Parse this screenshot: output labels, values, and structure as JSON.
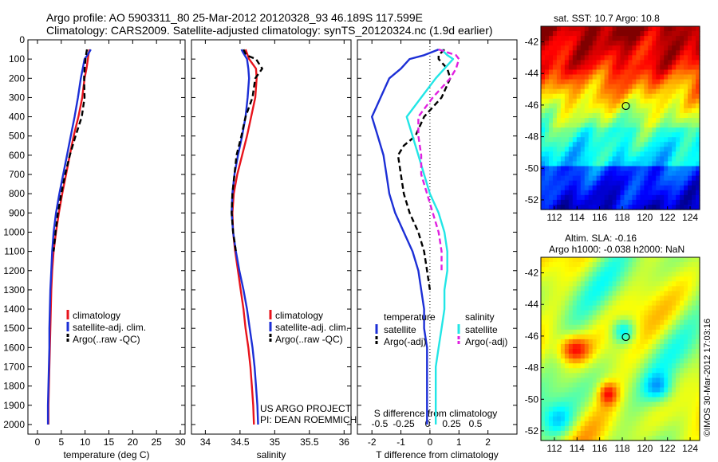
{
  "header": {
    "line1": "Argo profile: AO 5903311_80 25-Mar-2012 20120328_93 46.189S 117.599E",
    "line2": "Climatology: CARS2009. Satellite-adjusted climatology: synTS_20120324.nc (1.9d earlier)"
  },
  "colors": {
    "clim": "#e8141c",
    "sat": "#1c2fd6",
    "argo": "#000000",
    "sal_sat": "#22e6e6",
    "sal_argo": "#e020e0"
  },
  "chart_data": [
    {
      "id": "temperature",
      "type": "line",
      "xlabel": "temperature (deg C)",
      "xlim": [
        -2,
        31
      ],
      "ylim": [
        0,
        2050
      ],
      "xticks": [
        "0",
        "5",
        "10",
        "15",
        "20",
        "25",
        "30"
      ],
      "xtick_values": [
        0,
        5,
        10,
        15,
        20,
        25,
        30
      ],
      "yticks": [
        "0",
        "100",
        "200",
        "300",
        "400",
        "500",
        "600",
        "700",
        "800",
        "900",
        "1000",
        "1100",
        "1200",
        "1300",
        "1400",
        "1500",
        "1600",
        "1700",
        "1800",
        "1900",
        "2000"
      ],
      "ytick_values": [
        0,
        100,
        200,
        300,
        400,
        500,
        600,
        700,
        800,
        900,
        1000,
        1100,
        1200,
        1300,
        1400,
        1500,
        1600,
        1700,
        1800,
        1900,
        2000
      ],
      "legend": [
        "climatology",
        "satellite-adj. clim.",
        "Argo(..raw -QC)"
      ],
      "series": [
        {
          "name": "climatology",
          "color": "#e8141c",
          "dash": "",
          "x": [
            10.9,
            10.7,
            10.6,
            10.3,
            9.9,
            9.4,
            8.6,
            7.6,
            6.8,
            6.0,
            5.2,
            4.5,
            3.9,
            3.4,
            3.1,
            2.9,
            2.8,
            2.7,
            2.6,
            2.5,
            2.4,
            2.3,
            2.3
          ],
          "y": [
            50,
            80,
            100,
            150,
            200,
            300,
            400,
            500,
            600,
            700,
            800,
            900,
            1000,
            1100,
            1200,
            1300,
            1400,
            1500,
            1600,
            1700,
            1800,
            1900,
            2000
          ]
        },
        {
          "name": "satellite-adj. clim.",
          "color": "#1c2fd6",
          "dash": "",
          "x": [
            11.2,
            10.5,
            9.9,
            9.5,
            9.1,
            8.5,
            7.8,
            7.0,
            6.2,
            5.4,
            4.6,
            3.9,
            3.4,
            3.1,
            2.9,
            2.7,
            2.6,
            2.5,
            2.5,
            2.4,
            2.3,
            2.2,
            2.2
          ],
          "y": [
            50,
            80,
            100,
            150,
            200,
            300,
            400,
            500,
            600,
            700,
            800,
            900,
            1000,
            1100,
            1200,
            1300,
            1400,
            1500,
            1600,
            1700,
            1800,
            1900,
            2000
          ]
        },
        {
          "name": "Argo(..raw -QC)",
          "color": "#000000",
          "dash": "7,4",
          "x": [
            10.4,
            10.2,
            10.1,
            9.9,
            9.8,
            9.9,
            9.3,
            8.0,
            6.8,
            5.8,
            5.0,
            4.3,
            3.8,
            3.4
          ],
          "y": [
            50,
            80,
            100,
            150,
            200,
            300,
            400,
            500,
            600,
            700,
            800,
            900,
            1000,
            1100
          ]
        }
      ]
    },
    {
      "id": "salinity",
      "type": "line",
      "xlabel": "salinity",
      "xlim": [
        33.8,
        36.1
      ],
      "ylim": [
        0,
        2050
      ],
      "xticks": [
        "34",
        "34.5",
        "35",
        "35.5",
        "36"
      ],
      "xtick_values": [
        34,
        34.5,
        35,
        35.5,
        36
      ],
      "legend": [
        "climatology",
        "satellite-adj. clim.",
        "Argo(..raw -QC)"
      ],
      "annotations": [
        "US ARGO PROJECT",
        "PI: DEAN ROEMMICH"
      ],
      "series": [
        {
          "name": "climatology",
          "color": "#e8141c",
          "dash": "",
          "x": [
            34.58,
            34.6,
            34.63,
            34.73,
            34.74,
            34.72,
            34.66,
            34.6,
            34.53,
            34.46,
            34.41,
            34.39,
            34.4,
            34.43,
            34.47,
            34.51,
            34.55,
            34.58,
            34.62,
            34.65,
            34.67,
            34.69,
            34.7
          ],
          "y": [
            50,
            70,
            100,
            150,
            200,
            300,
            400,
            500,
            600,
            700,
            800,
            900,
            1000,
            1100,
            1200,
            1300,
            1400,
            1500,
            1600,
            1700,
            1800,
            1900,
            2000
          ]
        },
        {
          "name": "satellite-adj. clim.",
          "color": "#1c2fd6",
          "dash": "",
          "x": [
            34.52,
            34.55,
            34.6,
            34.62,
            34.63,
            34.61,
            34.58,
            34.53,
            34.47,
            34.42,
            34.39,
            34.38,
            34.4,
            34.44,
            34.49,
            34.55,
            34.6,
            34.64,
            34.68,
            34.71,
            34.73,
            34.75,
            34.76
          ],
          "y": [
            50,
            70,
            100,
            150,
            200,
            300,
            400,
            500,
            600,
            700,
            800,
            900,
            1000,
            1100,
            1200,
            1300,
            1400,
            1500,
            1600,
            1700,
            1800,
            1900,
            2000
          ]
        },
        {
          "name": "Argo(..raw -QC)",
          "color": "#000000",
          "dash": "7,4",
          "x": [
            34.55,
            34.59,
            34.73,
            34.82,
            34.72,
            34.68,
            34.58,
            34.52,
            34.45,
            34.42,
            34.39,
            34.38,
            34.4,
            34.44
          ],
          "y": [
            50,
            80,
            100,
            150,
            200,
            300,
            400,
            500,
            600,
            700,
            800,
            900,
            1000,
            1100
          ]
        }
      ]
    },
    {
      "id": "difference",
      "type": "line",
      "xlabel": "T difference from climatology",
      "xlabel2": "S difference from climatology",
      "xlim": [
        -2.5,
        3
      ],
      "ylim": [
        0,
        2050
      ],
      "xticks": [
        "-2",
        "-1",
        "0",
        "1",
        "2"
      ],
      "xtick_values": [
        -2,
        -1,
        0,
        1,
        2
      ],
      "xticks2": [
        "-0.5",
        "-0.25",
        "0",
        "0.25",
        "0.5"
      ],
      "xtick2_values": [
        -0.5,
        -0.25,
        0,
        0.25,
        0.5
      ],
      "legend_t": {
        "title": "temperature",
        "items": [
          "satellite",
          "Argo(-adj)"
        ]
      },
      "legend_s": {
        "title": "salinity",
        "items": [
          "satellite",
          "Argo(-adj)"
        ]
      },
      "series": [
        {
          "name": "satellite",
          "color": "#1c2fd6",
          "dash": "",
          "x": [
            0.3,
            -0.2,
            -0.7,
            -1.0,
            -1.4,
            -1.7,
            -2.0,
            -1.8,
            -1.6,
            -1.5,
            -1.4,
            -1.2,
            -0.9,
            -0.6,
            -0.4,
            -0.3,
            -0.2,
            -0.2,
            -0.1,
            -0.1,
            -0.1,
            -0.1,
            -0.1
          ],
          "y": [
            50,
            80,
            100,
            150,
            200,
            300,
            400,
            500,
            600,
            700,
            800,
            900,
            1000,
            1100,
            1200,
            1300,
            1400,
            1500,
            1600,
            1700,
            1800,
            1900,
            2000
          ]
        },
        {
          "name": "Argo(-adj)",
          "color": "#000000",
          "dash": "7,4",
          "x": [
            0.5,
            0.3,
            0.3,
            0.6,
            0.7,
            0.4,
            -0.2,
            -0.5,
            -0.9,
            -1.1,
            -1.0,
            -0.9,
            -0.7,
            -0.4,
            -0.2,
            -0.1,
            0.0
          ],
          "y": [
            50,
            80,
            100,
            150,
            200,
            300,
            400,
            500,
            550,
            600,
            700,
            800,
            900,
            1000,
            1100,
            1200,
            1300
          ]
        },
        {
          "name": "satellite",
          "color": "#22e6e6",
          "dash": "",
          "x": [
            0.4,
            0.6,
            0.8,
            0.5,
            0.2,
            -0.3,
            -0.8,
            -0.6,
            -0.4,
            -0.2,
            0.0,
            0.3,
            0.5,
            0.6,
            0.6,
            0.5,
            0.5,
            0.4,
            0.3,
            0.2,
            0.2,
            0.2,
            0.2
          ],
          "y": [
            50,
            80,
            100,
            150,
            200,
            300,
            400,
            500,
            600,
            700,
            800,
            900,
            1000,
            1100,
            1200,
            1300,
            1400,
            1500,
            1600,
            1700,
            1800,
            1900,
            2000
          ]
        },
        {
          "name": "Argo(-adj)",
          "color": "#e020e0",
          "dash": "7,4",
          "x": [
            0.3,
            0.9,
            1.0,
            0.9,
            0.7,
            0.1,
            -0.4,
            -0.4,
            -0.3,
            -0.3,
            -0.1,
            0.1,
            0.3,
            0.4,
            0.4
          ],
          "y": [
            50,
            80,
            100,
            150,
            200,
            300,
            400,
            500,
            600,
            700,
            800,
            900,
            1000,
            1100,
            1200
          ]
        }
      ]
    }
  ],
  "sst_map": {
    "title": "sat. SST: 10.7  Argo: 10.8",
    "xticks": [
      "112",
      "114",
      "116",
      "118",
      "120",
      "122",
      "124"
    ],
    "yticks": [
      "-42",
      "-44",
      "-46",
      "-48",
      "-50",
      "-52"
    ]
  },
  "sla_map": {
    "title1": "Altim. SLA: -0.16",
    "title2": "Argo h1000: -0.038 h2000: NaN",
    "xticks": [
      "112",
      "114",
      "116",
      "118",
      "120",
      "122",
      "124"
    ],
    "yticks": [
      "-42",
      "-44",
      "-46",
      "-48",
      "-50",
      "-52"
    ]
  },
  "credit": "©IMOS 30-Mar-2012 17:03:16"
}
